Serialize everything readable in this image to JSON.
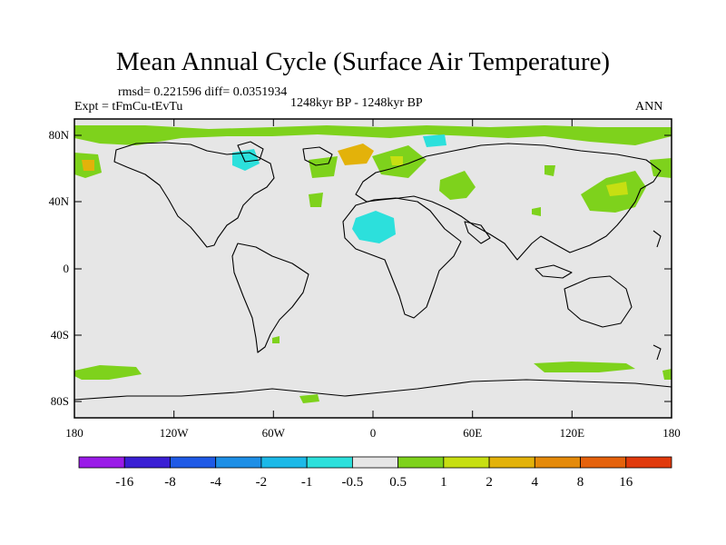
{
  "title": "Mean Annual Cycle (Surface Air Temperature)",
  "stats": "rmsd= 0.221596 diff= 0.0351934",
  "experiment": "Expt = tFmCu-tEvTu",
  "period": "1248kyr BP - 1248kyr BP",
  "season": "ANN",
  "lat_ticks": [
    "80N",
    "40N",
    "0",
    "40S",
    "80S"
  ],
  "lon_ticks": [
    "180",
    "120W",
    "60W",
    "0",
    "60E",
    "120E",
    "180"
  ],
  "colorbar": {
    "labels": [
      "-16",
      "-8",
      "-4",
      "-2",
      "-1",
      "-0.5",
      "0.5",
      "1",
      "2",
      "4",
      "8",
      "16"
    ],
    "colors": [
      "#9a1be8",
      "#3a1fd4",
      "#1f5ae6",
      "#1e8fe6",
      "#1cb9e8",
      "#2ce0dc",
      "#e6e6e6",
      "#7ed21c",
      "#c7df12",
      "#e3b20a",
      "#e58a0a",
      "#e5620c",
      "#e13a0c"
    ]
  },
  "colors": {
    "background_field": "#e6e6e6",
    "positive_small": "#7ed21c",
    "positive_mid": "#c7df12",
    "positive_high": "#e3b20a",
    "negative_small": "#2ce0dc"
  }
}
